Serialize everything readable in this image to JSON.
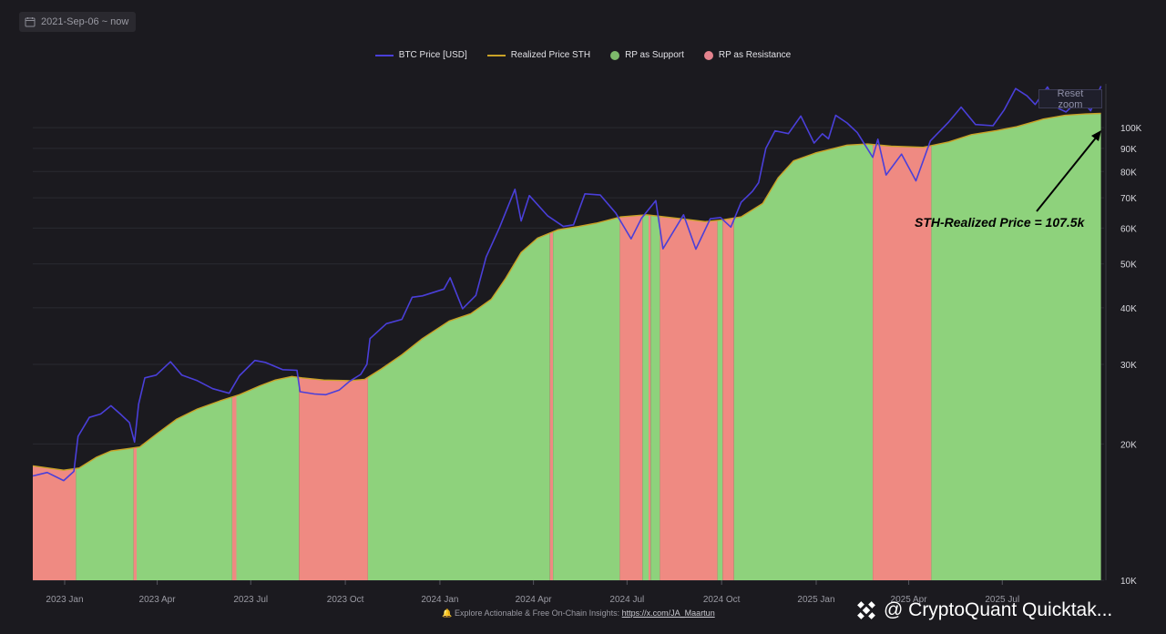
{
  "header": {
    "date_range": "2021-Sep-06 ~ now",
    "reset_zoom_label": "Reset zoom"
  },
  "legend": [
    {
      "label": "BTC Price [USD]",
      "color": "#4a3fd9",
      "kind": "line"
    },
    {
      "label": "Realized Price STH",
      "color": "#c9a227",
      "kind": "line"
    },
    {
      "label": "RP as Support",
      "color": "#7dba6b",
      "kind": "dot"
    },
    {
      "label": "RP as Resistance",
      "color": "#e4838e",
      "kind": "dot"
    }
  ],
  "annotation": {
    "text": "STH-Realized Price = 107.5k"
  },
  "footer": {
    "note": "Explore Actionable & Free On-Chain Insights:",
    "link_text": "https://x.com/JA_Maartun",
    "brand": "@ CryptoQuant Quicktak..."
  },
  "chart_data": {
    "type": "area",
    "y_scale": "log",
    "ylim": [
      10000,
      125000
    ],
    "xlim": [
      "2022-12-01",
      "2025-10-08"
    ],
    "x_ticks": [
      {
        "label": "2023 Jan",
        "date": "2023-01-01"
      },
      {
        "label": "2023 Apr",
        "date": "2023-04-01"
      },
      {
        "label": "2023 Jul",
        "date": "2023-07-01"
      },
      {
        "label": "2023 Oct",
        "date": "2023-10-01"
      },
      {
        "label": "2024 Jan",
        "date": "2024-01-01"
      },
      {
        "label": "2024 Apr",
        "date": "2024-04-01"
      },
      {
        "label": "2024 Jul",
        "date": "2024-07-01"
      },
      {
        "label": "2024 Oct",
        "date": "2024-10-01"
      },
      {
        "label": "2025 Jan",
        "date": "2025-01-01"
      },
      {
        "label": "2025 Apr",
        "date": "2025-04-01"
      },
      {
        "label": "2025 Jul",
        "date": "2025-07-01"
      }
    ],
    "y_ticks": [
      {
        "label": "10K",
        "value": 10000
      },
      {
        "label": "20K",
        "value": 20000
      },
      {
        "label": "30K",
        "value": 30000
      },
      {
        "label": "40K",
        "value": 40000
      },
      {
        "label": "50K",
        "value": 50000
      },
      {
        "label": "60K",
        "value": 60000
      },
      {
        "label": "70K",
        "value": 70000
      },
      {
        "label": "80K",
        "value": 80000
      },
      {
        "label": "90K",
        "value": 90000
      },
      {
        "label": "100K",
        "value": 100000
      }
    ],
    "series": [
      {
        "name": "BTC Price [USD]",
        "color": "#4a3fd9",
        "points": [
          [
            "2022-12-01",
            17000
          ],
          [
            "2022-12-15",
            17300
          ],
          [
            "2022-12-31",
            16600
          ],
          [
            "2023-01-10",
            17400
          ],
          [
            "2023-01-14",
            20800
          ],
          [
            "2023-01-25",
            22900
          ],
          [
            "2023-02-05",
            23300
          ],
          [
            "2023-02-15",
            24300
          ],
          [
            "2023-02-25",
            23200
          ],
          [
            "2023-03-05",
            22300
          ],
          [
            "2023-03-10",
            20200
          ],
          [
            "2023-03-14",
            24500
          ],
          [
            "2023-03-20",
            28000
          ],
          [
            "2023-03-31",
            28400
          ],
          [
            "2023-04-14",
            30400
          ],
          [
            "2023-04-25",
            28400
          ],
          [
            "2023-05-10",
            27600
          ],
          [
            "2023-05-25",
            26500
          ],
          [
            "2023-06-10",
            25900
          ],
          [
            "2023-06-20",
            28300
          ],
          [
            "2023-07-05",
            30600
          ],
          [
            "2023-07-15",
            30300
          ],
          [
            "2023-08-01",
            29200
          ],
          [
            "2023-08-15",
            29100
          ],
          [
            "2023-08-18",
            26100
          ],
          [
            "2023-09-01",
            25800
          ],
          [
            "2023-09-12",
            25700
          ],
          [
            "2023-09-25",
            26300
          ],
          [
            "2023-10-05",
            27500
          ],
          [
            "2023-10-16",
            28500
          ],
          [
            "2023-10-22",
            30000
          ],
          [
            "2023-10-25",
            34200
          ],
          [
            "2023-11-10",
            36900
          ],
          [
            "2023-11-25",
            37700
          ],
          [
            "2023-12-05",
            42200
          ],
          [
            "2023-12-15",
            42500
          ],
          [
            "2024-01-05",
            44000
          ],
          [
            "2024-01-11",
            46600
          ],
          [
            "2024-01-23",
            39800
          ],
          [
            "2024-02-05",
            42600
          ],
          [
            "2024-02-15",
            51800
          ],
          [
            "2024-02-28",
            60200
          ],
          [
            "2024-03-14",
            73100
          ],
          [
            "2024-03-20",
            62200
          ],
          [
            "2024-03-28",
            70800
          ],
          [
            "2024-04-15",
            63800
          ],
          [
            "2024-04-30",
            60500
          ],
          [
            "2024-05-10",
            61000
          ],
          [
            "2024-05-21",
            71400
          ],
          [
            "2024-06-05",
            71000
          ],
          [
            "2024-06-20",
            64800
          ],
          [
            "2024-07-05",
            56800
          ],
          [
            "2024-07-15",
            63000
          ],
          [
            "2024-07-29",
            69000
          ],
          [
            "2024-08-05",
            54000
          ],
          [
            "2024-08-25",
            64200
          ],
          [
            "2024-09-06",
            53900
          ],
          [
            "2024-09-20",
            62900
          ],
          [
            "2024-09-30",
            63300
          ],
          [
            "2024-10-10",
            60300
          ],
          [
            "2024-10-20",
            68400
          ],
          [
            "2024-10-31",
            72300
          ],
          [
            "2024-11-06",
            75600
          ],
          [
            "2024-11-13",
            90000
          ],
          [
            "2024-11-22",
            98400
          ],
          [
            "2024-12-05",
            97000
          ],
          [
            "2024-12-17",
            106100
          ],
          [
            "2024-12-30",
            92500
          ],
          [
            "2025-01-07",
            96900
          ],
          [
            "2025-01-13",
            94500
          ],
          [
            "2025-01-20",
            106500
          ],
          [
            "2025-01-31",
            102400
          ],
          [
            "2025-02-10",
            97500
          ],
          [
            "2025-02-25",
            86000
          ],
          [
            "2025-03-02",
            94300
          ],
          [
            "2025-03-10",
            78600
          ],
          [
            "2025-03-25",
            87400
          ],
          [
            "2025-04-08",
            76300
          ],
          [
            "2025-04-22",
            93500
          ],
          [
            "2025-05-10",
            103000
          ],
          [
            "2025-05-22",
            111000
          ],
          [
            "2025-06-05",
            101600
          ],
          [
            "2025-06-22",
            101000
          ],
          [
            "2025-07-03",
            109600
          ],
          [
            "2025-07-14",
            122000
          ],
          [
            "2025-07-25",
            117600
          ],
          [
            "2025-08-02",
            112500
          ],
          [
            "2025-08-14",
            123000
          ],
          [
            "2025-08-25",
            110200
          ],
          [
            "2025-09-01",
            108300
          ],
          [
            "2025-09-15",
            116000
          ],
          [
            "2025-09-25",
            109000
          ],
          [
            "2025-10-05",
            123500
          ]
        ]
      },
      {
        "name": "Realized Price STH",
        "color": "#c9a227",
        "points": [
          [
            "2022-12-01",
            17900
          ],
          [
            "2022-12-31",
            17500
          ],
          [
            "2023-01-15",
            17700
          ],
          [
            "2023-02-01",
            18700
          ],
          [
            "2023-02-15",
            19300
          ],
          [
            "2023-03-01",
            19500
          ],
          [
            "2023-03-15",
            19700
          ],
          [
            "2023-04-01",
            21100
          ],
          [
            "2023-04-20",
            22700
          ],
          [
            "2023-05-10",
            23900
          ],
          [
            "2023-06-01",
            24900
          ],
          [
            "2023-06-20",
            25700
          ],
          [
            "2023-07-10",
            26900
          ],
          [
            "2023-07-25",
            27700
          ],
          [
            "2023-08-10",
            28200
          ],
          [
            "2023-08-20",
            28000
          ],
          [
            "2023-09-10",
            27700
          ],
          [
            "2023-10-05",
            27600
          ],
          [
            "2023-10-20",
            27800
          ],
          [
            "2023-11-05",
            29300
          ],
          [
            "2023-11-25",
            31500
          ],
          [
            "2023-12-15",
            34200
          ],
          [
            "2024-01-10",
            37400
          ],
          [
            "2024-01-31",
            38800
          ],
          [
            "2024-02-20",
            41800
          ],
          [
            "2024-03-05",
            46500
          ],
          [
            "2024-03-20",
            53000
          ],
          [
            "2024-04-05",
            57000
          ],
          [
            "2024-04-25",
            59500
          ],
          [
            "2024-05-15",
            60500
          ],
          [
            "2024-06-01",
            61500
          ],
          [
            "2024-06-25",
            63500
          ],
          [
            "2024-07-20",
            64200
          ],
          [
            "2024-08-20",
            63000
          ],
          [
            "2024-09-15",
            62000
          ],
          [
            "2024-10-01",
            62500
          ],
          [
            "2024-10-20",
            63500
          ],
          [
            "2024-11-10",
            68000
          ],
          [
            "2024-11-25",
            77500
          ],
          [
            "2024-12-10",
            84500
          ],
          [
            "2025-01-01",
            88000
          ],
          [
            "2025-01-31",
            91500
          ],
          [
            "2025-02-20",
            92000
          ],
          [
            "2025-03-15",
            91000
          ],
          [
            "2025-04-15",
            90500
          ],
          [
            "2025-05-10",
            93000
          ],
          [
            "2025-06-01",
            96500
          ],
          [
            "2025-06-25",
            98500
          ],
          [
            "2025-07-15",
            100500
          ],
          [
            "2025-08-10",
            104500
          ],
          [
            "2025-08-31",
            106500
          ],
          [
            "2025-09-20",
            107200
          ],
          [
            "2025-10-05",
            107500
          ]
        ]
      }
    ],
    "regime_fill": {
      "default": "RP as Support",
      "resistance_periods": [
        [
          "2022-12-01",
          "2023-01-11"
        ],
        [
          "2023-03-09",
          "2023-03-11"
        ],
        [
          "2023-06-13",
          "2023-06-16"
        ],
        [
          "2023-08-17",
          "2023-10-22"
        ],
        [
          "2024-04-17",
          "2024-04-19"
        ],
        [
          "2024-06-24",
          "2024-07-15"
        ],
        [
          "2024-07-22",
          "2024-07-23"
        ],
        [
          "2024-08-02",
          "2024-09-26"
        ],
        [
          "2024-10-02",
          "2024-10-12"
        ],
        [
          "2025-02-25",
          "2025-04-22"
        ]
      ]
    }
  }
}
